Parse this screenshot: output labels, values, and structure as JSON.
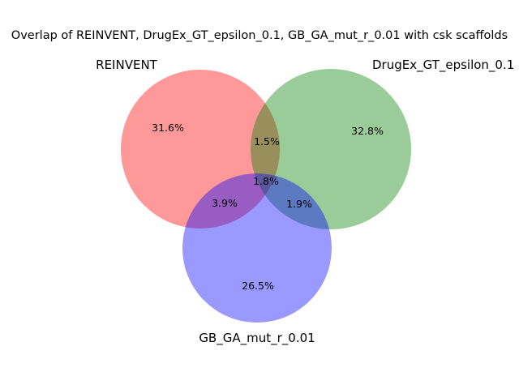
{
  "diagram": {
    "title": "Overlap of REINVENT, DrugEx_GT_epsilon_0.1, GB_GA_mut_r_0.01 with csk scaffolds",
    "sets": [
      {
        "key": "A",
        "label": "REINVENT",
        "color": "#ff0000",
        "opacity": 0.4
      },
      {
        "key": "B",
        "label": "DrugEx_GT_epsilon_0.1",
        "color": "#008000",
        "opacity": 0.4
      },
      {
        "key": "C",
        "label": "GB_GA_mut_r_0.01",
        "color": "#0000ff",
        "opacity": 0.4
      }
    ],
    "regions": {
      "A_only": "31.6%",
      "B_only": "32.8%",
      "C_only": "26.5%",
      "A_B": "1.5%",
      "A_C": "3.9%",
      "B_C": "1.9%",
      "A_B_C": "1.8%"
    }
  }
}
